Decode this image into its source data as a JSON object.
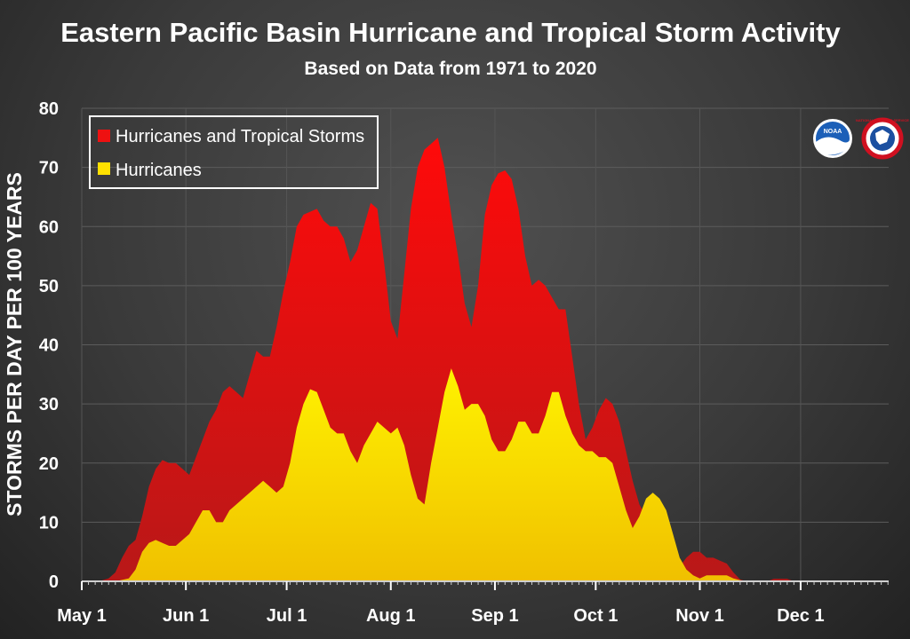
{
  "chart_data": {
    "type": "area",
    "title": "Eastern Pacific Basin Hurricane and Tropical Storm Activity",
    "subtitle": "Based on Data from 1971 to 2020",
    "ylabel": "STORMS PER DAY PER 100 YEARS",
    "xlabel": "",
    "ylim": [
      0,
      80
    ],
    "yticks": [
      "0",
      "10",
      "20",
      "30",
      "40",
      "50",
      "60",
      "70",
      "80"
    ],
    "xlim": [
      0,
      244
    ],
    "xtick_labels": [
      "May 1",
      "Jun 1",
      "Jul 1",
      "Aug 1",
      "Sep 1",
      "Oct 1",
      "Nov 1",
      "Dec 1"
    ],
    "xtick_days": [
      0,
      31,
      61,
      92,
      123,
      153,
      184,
      214
    ],
    "legend_position": "top-left",
    "grid": true,
    "series": [
      {
        "name": "Hurricanes and Tropical Storms",
        "color": "#ee1111",
        "points": [
          [
            0,
            0
          ],
          [
            5,
            0
          ],
          [
            8,
            0.5
          ],
          [
            10,
            1.5
          ],
          [
            12,
            4
          ],
          [
            14,
            6
          ],
          [
            16,
            7
          ],
          [
            18,
            11
          ],
          [
            20,
            16
          ],
          [
            22,
            19
          ],
          [
            24,
            20.5
          ],
          [
            26,
            20
          ],
          [
            28,
            20
          ],
          [
            30,
            19
          ],
          [
            32,
            18
          ],
          [
            34,
            21
          ],
          [
            36,
            24
          ],
          [
            38,
            27
          ],
          [
            40,
            29
          ],
          [
            42,
            32
          ],
          [
            44,
            33
          ],
          [
            46,
            32
          ],
          [
            48,
            31
          ],
          [
            50,
            35
          ],
          [
            52,
            39
          ],
          [
            54,
            38
          ],
          [
            56,
            38
          ],
          [
            58,
            43
          ],
          [
            60,
            49
          ],
          [
            62,
            54
          ],
          [
            64,
            60
          ],
          [
            66,
            62
          ],
          [
            68,
            62.5
          ],
          [
            70,
            63
          ],
          [
            72,
            61
          ],
          [
            74,
            60
          ],
          [
            76,
            60
          ],
          [
            78,
            58
          ],
          [
            80,
            54
          ],
          [
            82,
            56
          ],
          [
            84,
            60
          ],
          [
            86,
            64
          ],
          [
            88,
            63
          ],
          [
            90,
            54
          ],
          [
            92,
            44
          ],
          [
            94,
            41
          ],
          [
            96,
            52
          ],
          [
            98,
            63
          ],
          [
            100,
            70
          ],
          [
            102,
            73
          ],
          [
            104,
            74
          ],
          [
            106,
            75
          ],
          [
            108,
            70
          ],
          [
            110,
            62
          ],
          [
            112,
            55
          ],
          [
            114,
            47
          ],
          [
            116,
            43
          ],
          [
            118,
            50
          ],
          [
            120,
            62
          ],
          [
            122,
            67
          ],
          [
            124,
            69
          ],
          [
            126,
            69.5
          ],
          [
            128,
            68
          ],
          [
            130,
            63
          ],
          [
            132,
            55
          ],
          [
            134,
            50
          ],
          [
            136,
            51
          ],
          [
            138,
            50
          ],
          [
            140,
            48
          ],
          [
            142,
            46
          ],
          [
            144,
            46
          ],
          [
            146,
            38
          ],
          [
            148,
            30
          ],
          [
            150,
            24
          ],
          [
            152,
            26
          ],
          [
            154,
            29
          ],
          [
            156,
            31
          ],
          [
            158,
            30
          ],
          [
            160,
            27
          ],
          [
            162,
            22
          ],
          [
            164,
            17
          ],
          [
            166,
            13
          ],
          [
            168,
            11
          ],
          [
            170,
            8
          ],
          [
            172,
            5
          ],
          [
            174,
            2
          ],
          [
            176,
            1.5
          ],
          [
            178,
            2.5
          ],
          [
            180,
            4
          ],
          [
            182,
            5
          ],
          [
            184,
            5
          ],
          [
            186,
            4
          ],
          [
            188,
            4
          ],
          [
            190,
            3.5
          ],
          [
            192,
            3
          ],
          [
            194,
            1.5
          ],
          [
            196,
            0.3
          ],
          [
            198,
            0
          ],
          [
            204,
            0
          ],
          [
            206,
            0.4
          ],
          [
            210,
            0.4
          ],
          [
            212,
            0
          ],
          [
            244,
            0
          ]
        ]
      },
      {
        "name": "Hurricanes",
        "color": "#ffe000",
        "points": [
          [
            0,
            0
          ],
          [
            10,
            0
          ],
          [
            14,
            0.5
          ],
          [
            16,
            2
          ],
          [
            18,
            5
          ],
          [
            20,
            6.5
          ],
          [
            22,
            7
          ],
          [
            24,
            6.5
          ],
          [
            26,
            6
          ],
          [
            28,
            6
          ],
          [
            30,
            7
          ],
          [
            32,
            8
          ],
          [
            34,
            10
          ],
          [
            36,
            12
          ],
          [
            38,
            12
          ],
          [
            40,
            10
          ],
          [
            42,
            10
          ],
          [
            44,
            12
          ],
          [
            46,
            13
          ],
          [
            48,
            14
          ],
          [
            50,
            15
          ],
          [
            52,
            16
          ],
          [
            54,
            17
          ],
          [
            56,
            16
          ],
          [
            58,
            15
          ],
          [
            60,
            16
          ],
          [
            62,
            20
          ],
          [
            64,
            26
          ],
          [
            66,
            30
          ],
          [
            68,
            32.5
          ],
          [
            70,
            32
          ],
          [
            72,
            29
          ],
          [
            74,
            26
          ],
          [
            76,
            25
          ],
          [
            78,
            25
          ],
          [
            80,
            22
          ],
          [
            82,
            20
          ],
          [
            84,
            23
          ],
          [
            86,
            25
          ],
          [
            88,
            27
          ],
          [
            90,
            26
          ],
          [
            92,
            25
          ],
          [
            94,
            26
          ],
          [
            96,
            23
          ],
          [
            98,
            18
          ],
          [
            100,
            14
          ],
          [
            102,
            13
          ],
          [
            104,
            20
          ],
          [
            106,
            26
          ],
          [
            108,
            32
          ],
          [
            110,
            36
          ],
          [
            112,
            33
          ],
          [
            114,
            29
          ],
          [
            116,
            30
          ],
          [
            118,
            30
          ],
          [
            120,
            28
          ],
          [
            122,
            24
          ],
          [
            124,
            22
          ],
          [
            126,
            22
          ],
          [
            128,
            24
          ],
          [
            130,
            27
          ],
          [
            132,
            27
          ],
          [
            134,
            25
          ],
          [
            136,
            25
          ],
          [
            138,
            28
          ],
          [
            140,
            32
          ],
          [
            142,
            32
          ],
          [
            144,
            28
          ],
          [
            146,
            25
          ],
          [
            148,
            23
          ],
          [
            150,
            22
          ],
          [
            152,
            22
          ],
          [
            154,
            21
          ],
          [
            156,
            21
          ],
          [
            158,
            20
          ],
          [
            160,
            16
          ],
          [
            162,
            12
          ],
          [
            164,
            9
          ],
          [
            166,
            11
          ],
          [
            168,
            14
          ],
          [
            170,
            15
          ],
          [
            172,
            14
          ],
          [
            174,
            12
          ],
          [
            176,
            8
          ],
          [
            178,
            4
          ],
          [
            180,
            2
          ],
          [
            182,
            1
          ],
          [
            184,
            0.5
          ],
          [
            186,
            1
          ],
          [
            188,
            1
          ],
          [
            190,
            1
          ],
          [
            192,
            1
          ],
          [
            194,
            0.5
          ],
          [
            196,
            0.2
          ],
          [
            198,
            0
          ],
          [
            244,
            0
          ]
        ]
      }
    ]
  },
  "logos": {
    "noaa_text": "NOAA",
    "nws_text": "NATIONAL WEATHER SERVICE"
  }
}
